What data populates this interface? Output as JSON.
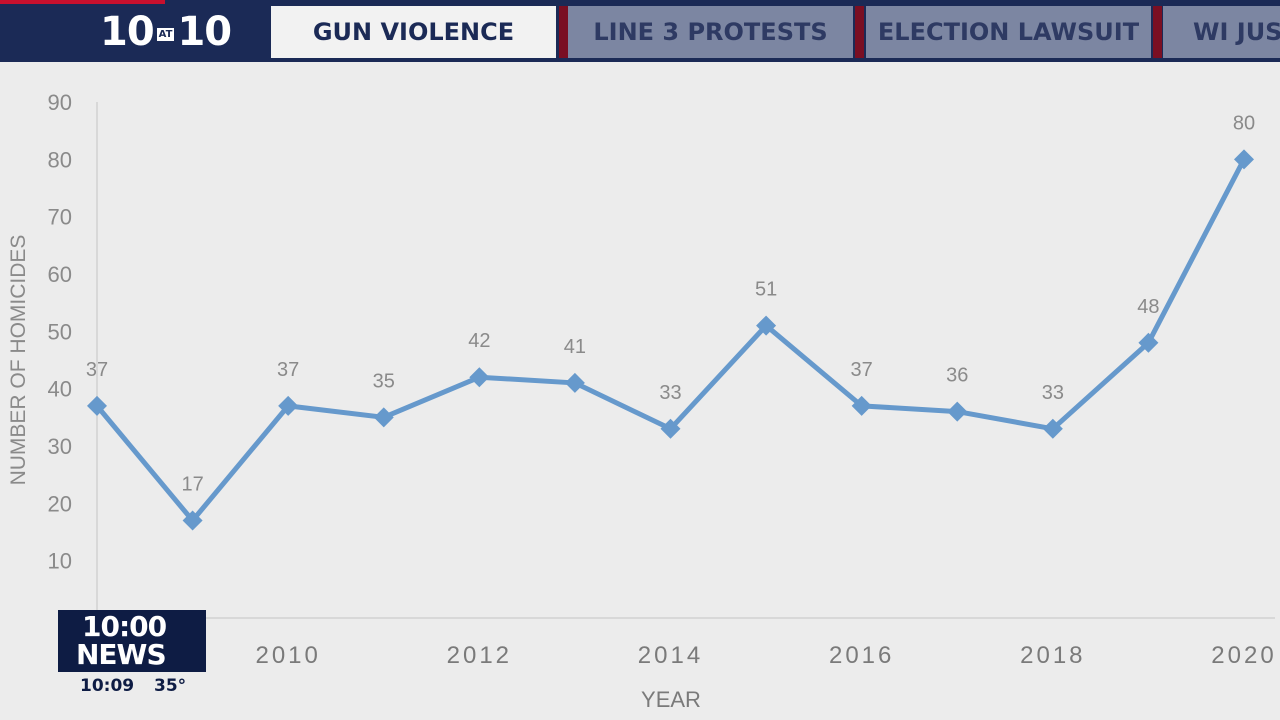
{
  "header": {
    "logo": {
      "left": "10",
      "mid": "AT",
      "right": "10"
    },
    "tabs": [
      {
        "label": "GUN VIOLENCE",
        "active": true
      },
      {
        "label": "LINE 3 PROTESTS",
        "active": false
      },
      {
        "label": "ELECTION LAWSUIT",
        "active": false
      },
      {
        "label": "WI JUS",
        "active": false
      }
    ]
  },
  "chart_data": {
    "type": "line",
    "xlabel": "YEAR",
    "ylabel": "NUMBER OF HOMICIDES",
    "x": [
      2008,
      2009,
      2010,
      2011,
      2012,
      2013,
      2014,
      2015,
      2016,
      2017,
      2018,
      2019,
      2020
    ],
    "x_tick_labels": [
      "2010",
      "2012",
      "2014",
      "2016",
      "2018",
      "2020"
    ],
    "y_tick_labels": [
      "10",
      "20",
      "30",
      "40",
      "50",
      "60",
      "70",
      "80",
      "90"
    ],
    "series": [
      {
        "values": [
          37,
          17,
          37,
          35,
          42,
          41,
          33,
          51,
          37,
          36,
          33,
          48,
          80
        ]
      }
    ],
    "ylim": [
      0,
      90
    ],
    "grid": false,
    "line_color": "#6699cc",
    "label_color": "#8a8a8a"
  },
  "bug": {
    "line1": "10:00",
    "line2": "NEWS",
    "time": "10:09",
    "temp": "35°"
  }
}
